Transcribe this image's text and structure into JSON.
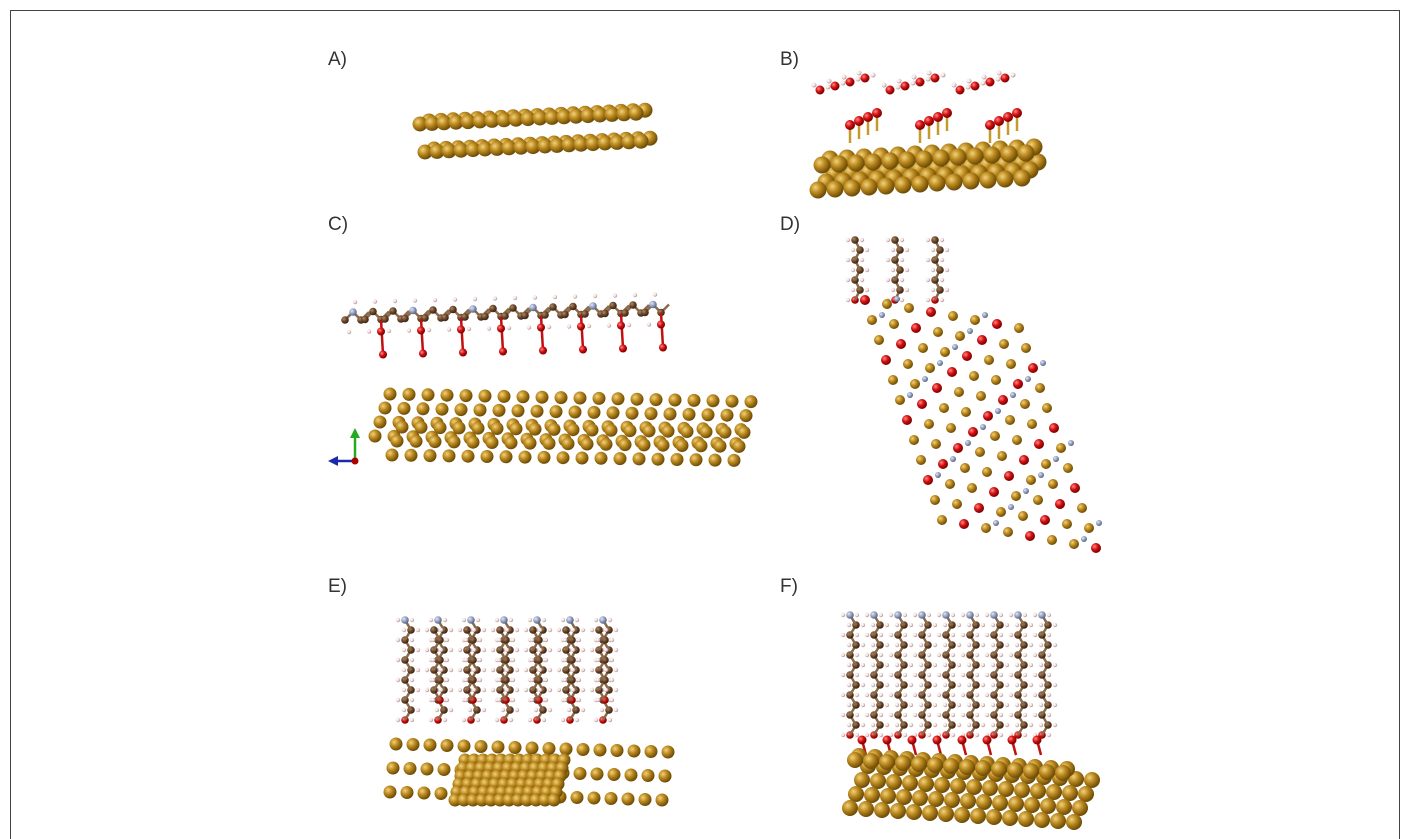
{
  "panels": [
    "A)",
    "B)",
    "C)",
    "D)",
    "E)",
    "F)"
  ]
}
